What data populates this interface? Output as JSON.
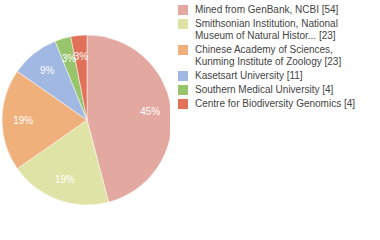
{
  "chart_data": {
    "type": "pie",
    "categories": [
      "Mined from GenBank, NCBI [54]",
      "Smithsonian Institution, National Museum of Natural Histor... [23]",
      "Chinese Academy of Sciences, Kunming Institute of Zoology [23]",
      "Kasetsart University [11]",
      "Southern Medical University [4]",
      "Centre for Biodiversity Genomics [4]"
    ],
    "values": [
      45,
      19,
      19,
      9,
      3,
      3
    ],
    "value_labels": [
      "45%",
      "19%",
      "19%",
      "9%",
      "3%",
      "3%"
    ],
    "data_labels": true,
    "legend": "right",
    "colors": [
      "#e3a9a1",
      "#dfe3a6",
      "#f0b07b",
      "#a0b8e2",
      "#98c46c",
      "#e2715a"
    ]
  }
}
